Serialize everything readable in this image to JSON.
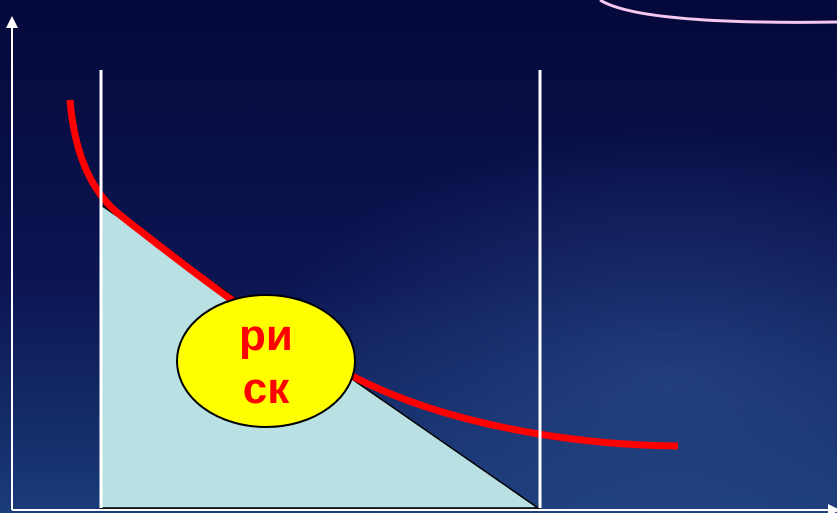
{
  "diagram": {
    "label_line1": "ри",
    "label_line2": "ск",
    "colors": {
      "background_top": "#06093a",
      "background_bottom": "#14306a",
      "axis": "#ffffff",
      "curve": "#ff0000",
      "risk_area": "#b9e0e2",
      "risk_area_edge": "#000000",
      "label_fill": "#ffff00",
      "label_text": "#ff0000",
      "corner_arc": "#f5c8f2"
    }
  }
}
